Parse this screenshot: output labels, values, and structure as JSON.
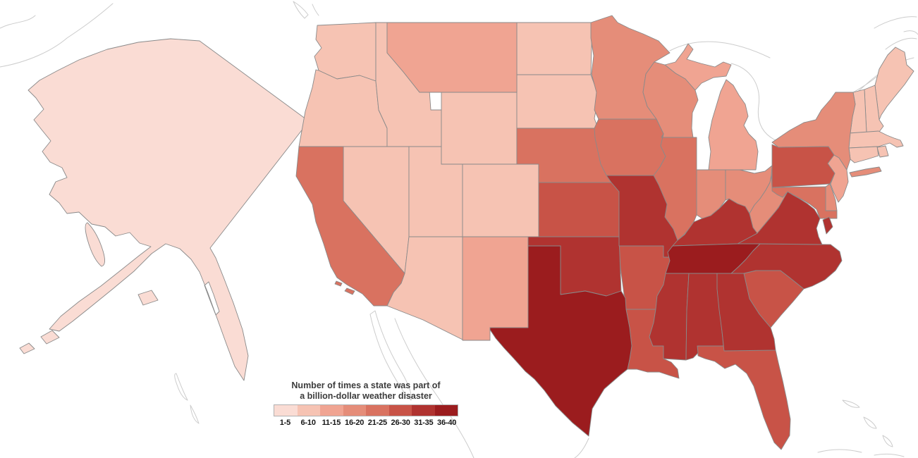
{
  "title": {
    "line1": "Number of times a state was part of",
    "line2": "a billion-dollar weather disaster"
  },
  "legend": {
    "bins": [
      {
        "label": "1-5",
        "color": "#fadcd4"
      },
      {
        "label": "6-10",
        "color": "#f6c3b3"
      },
      {
        "label": "11-15",
        "color": "#f0a492"
      },
      {
        "label": "16-20",
        "color": "#e58d79"
      },
      {
        "label": "21-25",
        "color": "#d97260"
      },
      {
        "label": "26-30",
        "color": "#c85347"
      },
      {
        "label": "31-35",
        "color": "#b03330"
      },
      {
        "label": "36-40",
        "color": "#9b1c1e"
      }
    ]
  },
  "map": {
    "background": "#ffffff",
    "state_border_color": "#8a8a8a",
    "context_outline_color": "#cccccc"
  },
  "states": [
    {
      "id": "AK",
      "name": "Alaska",
      "bin": 0
    },
    {
      "id": "WA",
      "name": "Washington",
      "bin": 1
    },
    {
      "id": "OR",
      "name": "Oregon",
      "bin": 1
    },
    {
      "id": "ID",
      "name": "Idaho",
      "bin": 1
    },
    {
      "id": "NV",
      "name": "Nevada",
      "bin": 1
    },
    {
      "id": "UT",
      "name": "Utah",
      "bin": 1
    },
    {
      "id": "WY",
      "name": "Wyoming",
      "bin": 1
    },
    {
      "id": "CO",
      "name": "Colorado",
      "bin": 1
    },
    {
      "id": "AZ",
      "name": "Arizona",
      "bin": 1
    },
    {
      "id": "ND",
      "name": "North Dakota",
      "bin": 1
    },
    {
      "id": "SD",
      "name": "South Dakota",
      "bin": 1
    },
    {
      "id": "ME",
      "name": "Maine",
      "bin": 1
    },
    {
      "id": "NH",
      "name": "New Hampshire",
      "bin": 1
    },
    {
      "id": "VT",
      "name": "Vermont",
      "bin": 1
    },
    {
      "id": "MA",
      "name": "Massachusetts",
      "bin": 1
    },
    {
      "id": "RI",
      "name": "Rhode Island",
      "bin": 1
    },
    {
      "id": "CT",
      "name": "Connecticut",
      "bin": 1
    },
    {
      "id": "MT",
      "name": "Montana",
      "bin": 2
    },
    {
      "id": "NM",
      "name": "New Mexico",
      "bin": 2
    },
    {
      "id": "MI",
      "name": "Michigan",
      "bin": 2
    },
    {
      "id": "NJ",
      "name": "New Jersey",
      "bin": 2
    },
    {
      "id": "MN",
      "name": "Minnesota",
      "bin": 3
    },
    {
      "id": "WI",
      "name": "Wisconsin",
      "bin": 3
    },
    {
      "id": "IN",
      "name": "Indiana",
      "bin": 3
    },
    {
      "id": "OH",
      "name": "Ohio",
      "bin": 3
    },
    {
      "id": "WV",
      "name": "West Virginia",
      "bin": 3
    },
    {
      "id": "NY",
      "name": "New York",
      "bin": 3
    },
    {
      "id": "DE",
      "name": "Delaware",
      "bin": 3
    },
    {
      "id": "CA",
      "name": "California",
      "bin": 4
    },
    {
      "id": "NE",
      "name": "Nebraska",
      "bin": 4
    },
    {
      "id": "IA",
      "name": "Iowa",
      "bin": 4
    },
    {
      "id": "IL",
      "name": "Illinois",
      "bin": 4
    },
    {
      "id": "MD",
      "name": "Maryland",
      "bin": 4
    },
    {
      "id": "KS",
      "name": "Kansas",
      "bin": 5
    },
    {
      "id": "AR",
      "name": "Arkansas",
      "bin": 5
    },
    {
      "id": "LA",
      "name": "Louisiana",
      "bin": 5
    },
    {
      "id": "FL",
      "name": "Florida",
      "bin": 5
    },
    {
      "id": "SC",
      "name": "South Carolina",
      "bin": 5
    },
    {
      "id": "PA",
      "name": "Pennsylvania",
      "bin": 5
    },
    {
      "id": "OK",
      "name": "Oklahoma",
      "bin": 6
    },
    {
      "id": "MO",
      "name": "Missouri",
      "bin": 6
    },
    {
      "id": "MS",
      "name": "Mississippi",
      "bin": 6
    },
    {
      "id": "AL",
      "name": "Alabama",
      "bin": 6
    },
    {
      "id": "GA",
      "name": "Georgia",
      "bin": 6
    },
    {
      "id": "NC",
      "name": "North Carolina",
      "bin": 6
    },
    {
      "id": "VA",
      "name": "Virginia",
      "bin": 6
    },
    {
      "id": "KY",
      "name": "Kentucky",
      "bin": 6
    },
    {
      "id": "TX",
      "name": "Texas",
      "bin": 7
    },
    {
      "id": "TN",
      "name": "Tennessee",
      "bin": 7
    }
  ],
  "chart_data": {
    "type": "choropleth",
    "title": "Number of times a state was part of a billion-dollar weather disaster",
    "legend_bins": [
      "1-5",
      "6-10",
      "11-15",
      "16-20",
      "21-25",
      "26-30",
      "31-35",
      "36-40"
    ],
    "values": {
      "AK": "1-5",
      "WA": "6-10",
      "OR": "6-10",
      "ID": "6-10",
      "NV": "6-10",
      "UT": "6-10",
      "WY": "6-10",
      "CO": "6-10",
      "AZ": "6-10",
      "ND": "6-10",
      "SD": "6-10",
      "ME": "6-10",
      "NH": "6-10",
      "VT": "6-10",
      "MA": "6-10",
      "RI": "6-10",
      "CT": "6-10",
      "MT": "11-15",
      "NM": "11-15",
      "MI": "11-15",
      "NJ": "11-15",
      "MN": "16-20",
      "WI": "16-20",
      "IN": "16-20",
      "OH": "16-20",
      "WV": "16-20",
      "NY": "16-20",
      "DE": "16-20",
      "CA": "21-25",
      "NE": "21-25",
      "IA": "21-25",
      "IL": "21-25",
      "MD": "21-25",
      "KS": "26-30",
      "AR": "26-30",
      "LA": "26-30",
      "FL": "26-30",
      "SC": "26-30",
      "PA": "26-30",
      "OK": "31-35",
      "MO": "31-35",
      "MS": "31-35",
      "AL": "31-35",
      "GA": "31-35",
      "NC": "31-35",
      "VA": "31-35",
      "KY": "31-35",
      "TX": "36-40",
      "TN": "36-40"
    }
  }
}
